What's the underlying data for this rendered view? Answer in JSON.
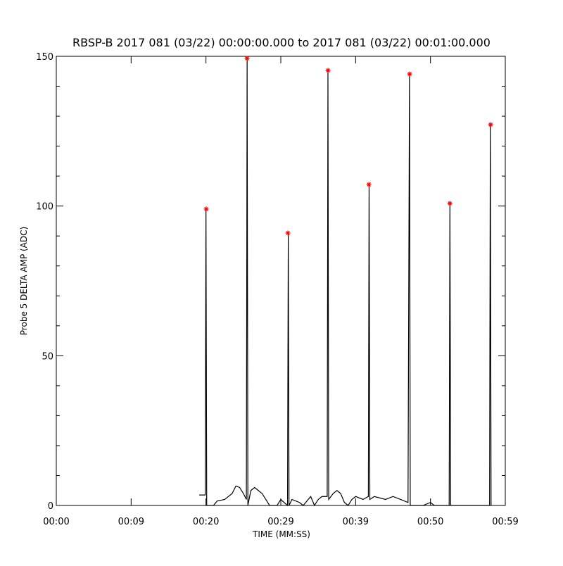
{
  "chart_data": {
    "type": "line",
    "title": "RBSP-B 2017 081 (03/22) 00:00:00.000 to 2017 081 (03/22) 00:01:00.000",
    "x_label": "TIME (MM:SS)",
    "y_label": "Probe 5 DELTA AMP (ADC)",
    "xlim": [
      0,
      60
    ],
    "ylim": [
      0,
      150
    ],
    "xticks": [
      {
        "value": 0,
        "label": "00:00"
      },
      {
        "value": 10,
        "label": "00:09"
      },
      {
        "value": 20,
        "label": "00:20"
      },
      {
        "value": 30,
        "label": "00:29"
      },
      {
        "value": 40,
        "label": "00:39"
      },
      {
        "value": 50,
        "label": "00:50"
      },
      {
        "value": 60,
        "label": "00:59"
      }
    ],
    "yticks": [
      0,
      50,
      100,
      150
    ],
    "yminorticks": [
      10,
      20,
      30,
      40,
      60,
      70,
      80,
      90,
      110,
      120,
      130,
      140
    ],
    "series": [
      {
        "type": "line",
        "color": "#000000",
        "x": [
          19.1,
          19.9,
          20.0,
          20.1,
          21.0,
          21.5,
          22.5,
          23.5,
          24.0,
          24.5,
          25.0,
          25.4,
          25.5,
          25.6,
          26.0,
          26.5,
          27.0,
          27.5,
          28.0,
          28.5,
          29.5,
          30.0,
          30.9,
          31.0,
          31.1,
          31.5,
          32.5,
          33.0,
          34.0,
          34.5,
          35.0,
          35.5,
          36.2,
          36.3,
          36.4,
          37.0,
          37.5,
          38.0,
          38.5,
          39.0,
          39.5,
          40.0,
          41.0,
          41.7,
          41.8,
          41.9,
          42.5,
          44.0,
          45.0,
          46.0,
          47.0,
          47.2,
          47.3,
          48.0,
          49.0,
          50.0,
          50.5,
          52.5,
          52.6,
          52.7,
          57.9,
          58.0,
          58.1
        ],
        "values": [
          3.5,
          3.5,
          99,
          0,
          0,
          1.5,
          2,
          4,
          6.5,
          6,
          4,
          2,
          149,
          0,
          5,
          6,
          5,
          4,
          2,
          0,
          0,
          2,
          0,
          91,
          0,
          2,
          1,
          0,
          3,
          0,
          2,
          3,
          3,
          145,
          2,
          4,
          5,
          4,
          1,
          0,
          2,
          3,
          2,
          3,
          107,
          2,
          3,
          2,
          3,
          2,
          1,
          144,
          0,
          0,
          0,
          1,
          0,
          0,
          101,
          0,
          0,
          127,
          0
        ]
      },
      {
        "type": "scatter",
        "color": "#ff0000",
        "x": [
          20.04,
          25.49,
          30.95,
          36.31,
          41.77,
          47.22,
          52.59,
          58.04
        ],
        "values": [
          99.0,
          149.3,
          91.0,
          145.3,
          107.2,
          144.1,
          100.9,
          127.2
        ]
      }
    ]
  }
}
